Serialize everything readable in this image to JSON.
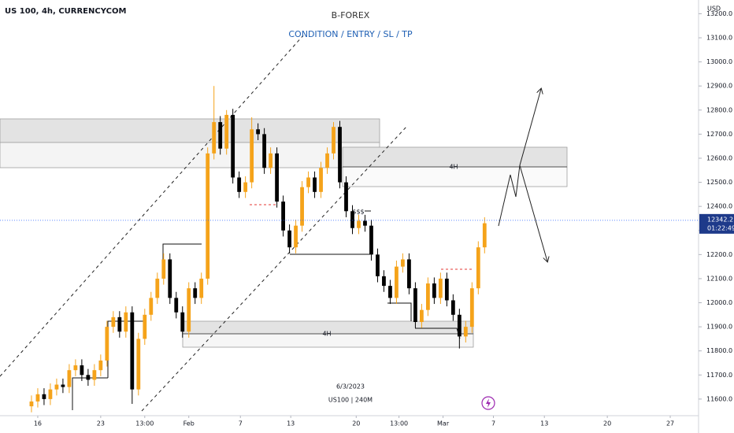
{
  "chart_data": {
    "type": "candlestick",
    "title": "B-FOREX",
    "subtitle": "CONDITION / ENTRY / SL / TP",
    "symbol": "US 100, 4h, CURRENCYCOM",
    "currency": "USD",
    "up_color": "#f5a31a",
    "down_color": "#000000",
    "x": [
      4,
      5,
      6,
      7,
      8,
      9,
      10,
      11,
      12,
      13,
      14,
      15,
      16,
      17,
      18,
      19,
      20,
      21,
      22,
      23,
      24,
      25,
      26,
      27,
      28,
      29,
      30,
      31,
      32,
      33,
      34,
      35,
      36,
      37,
      38,
      39,
      40,
      41,
      42,
      43,
      44,
      45,
      46,
      47,
      48,
      49,
      50,
      51,
      52,
      53,
      54,
      55,
      56,
      57,
      58,
      59,
      60,
      61,
      62,
      63,
      64,
      65,
      66,
      67,
      68,
      69,
      70,
      71,
      72,
      73,
      74,
      75,
      76
    ],
    "open": [
      11570,
      11590,
      11620,
      11600,
      11640,
      11660,
      11650,
      11720,
      11740,
      11700,
      11680,
      11720,
      11760,
      11900,
      11940,
      11880,
      11960,
      11640,
      11850,
      11950,
      12020,
      12100,
      12180,
      12020,
      11960,
      11880,
      12060,
      12020,
      12100,
      12620,
      12750,
      12640,
      12780,
      12520,
      12460,
      12500,
      12720,
      12700,
      12560,
      12620,
      12420,
      12300,
      12230,
      12320,
      12480,
      12520,
      12460,
      12560,
      12620,
      12730,
      12500,
      12380,
      12310,
      12340,
      12320,
      12200,
      12110,
      12070,
      12020,
      12150,
      12180,
      12060,
      11920,
      11970,
      12080,
      12020,
      12100,
      12010,
      11950,
      11860,
      11900,
      12060,
      12230
    ],
    "high": [
      11615,
      11645,
      11645,
      11665,
      11685,
      11685,
      11745,
      11765,
      11765,
      11725,
      11745,
      11785,
      11925,
      11965,
      11965,
      11985,
      11985,
      11875,
      11975,
      12045,
      12125,
      12205,
      12205,
      12045,
      11985,
      12085,
      12085,
      12125,
      12645,
      12900,
      12775,
      12800,
      12805,
      12545,
      12525,
      12770,
      12745,
      12725,
      12645,
      12645,
      12445,
      12325,
      12345,
      12505,
      12545,
      12545,
      12585,
      12645,
      12750,
      12755,
      12525,
      12405,
      12365,
      12365,
      12345,
      12225,
      12135,
      12095,
      12175,
      12205,
      12205,
      12085,
      11995,
      12105,
      12105,
      12125,
      12125,
      12035,
      11975,
      11925,
      12085,
      12255,
      12355
    ],
    "low": [
      11545,
      11565,
      11575,
      11575,
      11615,
      11625,
      11625,
      11695,
      11675,
      11655,
      11655,
      11695,
      11735,
      11875,
      11855,
      11855,
      11580,
      11615,
      11825,
      11925,
      11995,
      12075,
      11995,
      11935,
      11855,
      11855,
      11995,
      11995,
      12075,
      12595,
      12615,
      12615,
      12495,
      12435,
      12435,
      12475,
      12675,
      12535,
      12535,
      12395,
      12275,
      12205,
      12205,
      12295,
      12455,
      12435,
      12435,
      12535,
      12595,
      12475,
      12355,
      12285,
      12285,
      12295,
      12175,
      12085,
      12045,
      11995,
      11995,
      12125,
      12035,
      11895,
      11895,
      11945,
      11995,
      11995,
      11985,
      11925,
      11810,
      11835,
      11875,
      12035,
      12205
    ],
    "close": [
      11590,
      11620,
      11600,
      11640,
      11660,
      11650,
      11720,
      11740,
      11700,
      11680,
      11720,
      11760,
      11900,
      11940,
      11880,
      11960,
      11640,
      11850,
      11950,
      12020,
      12100,
      12180,
      12020,
      11960,
      11880,
      12060,
      12020,
      12100,
      12620,
      12750,
      12640,
      12780,
      12520,
      12460,
      12500,
      12720,
      12700,
      12560,
      12620,
      12420,
      12300,
      12230,
      12320,
      12480,
      12520,
      12460,
      12560,
      12620,
      12730,
      12500,
      12380,
      12310,
      12340,
      12320,
      12200,
      12110,
      12070,
      12020,
      12150,
      12180,
      12060,
      11920,
      11970,
      12080,
      12020,
      12100,
      12010,
      11950,
      11860,
      11900,
      12060,
      12230,
      12330
    ],
    "xlim": [
      -1,
      110
    ],
    "xticks": [
      {
        "value": 5,
        "label": "16"
      },
      {
        "value": 15,
        "label": "23"
      },
      {
        "value": 22,
        "label": "13:00"
      },
      {
        "value": 29,
        "label": "Feb"
      },
      {
        "value": 37.2,
        "label": "7"
      },
      {
        "value": 45.2,
        "label": "13"
      },
      {
        "value": 55.6,
        "label": "20"
      },
      {
        "value": 62.4,
        "label": "13:00"
      },
      {
        "value": 69.4,
        "label": "Mar"
      },
      {
        "value": 77.4,
        "label": "7"
      },
      {
        "value": 85.5,
        "label": "13"
      },
      {
        "value": 95.5,
        "label": "20"
      },
      {
        "value": 105.5,
        "label": "27"
      }
    ],
    "ylim": [
      11531,
      13257
    ],
    "yticks": [
      {
        "value": 11600,
        "label": "11600.0"
      },
      {
        "value": 11700,
        "label": "11700.0"
      },
      {
        "value": 11800,
        "label": "11800.0"
      },
      {
        "value": 11900,
        "label": "11900.0"
      },
      {
        "value": 12000,
        "label": "12000.0"
      },
      {
        "value": 12100,
        "label": "12100.0"
      },
      {
        "value": 12200,
        "label": "12200.0"
      },
      {
        "value": 12300,
        "label": "12300.0"
      },
      {
        "value": 12400,
        "label": "12400.0"
      },
      {
        "value": 12500,
        "label": "12500.0"
      },
      {
        "value": 12600,
        "label": "12600.0"
      },
      {
        "value": 12700,
        "label": "12700.0"
      },
      {
        "value": 12800,
        "label": "12800.0"
      },
      {
        "value": 12900,
        "label": "12900.0"
      },
      {
        "value": 13000,
        "label": "13000.0"
      },
      {
        "value": 13100,
        "label": "13100.0"
      },
      {
        "value": 13200,
        "label": "13200.0"
      }
    ],
    "last_price": 12342.2,
    "countdown": "01:22:49",
    "annotations": [
      "4H",
      "4H",
      "$$$"
    ],
    "watermark": {
      "date": "6/3/2023",
      "label": "US100 | 240M"
    }
  }
}
